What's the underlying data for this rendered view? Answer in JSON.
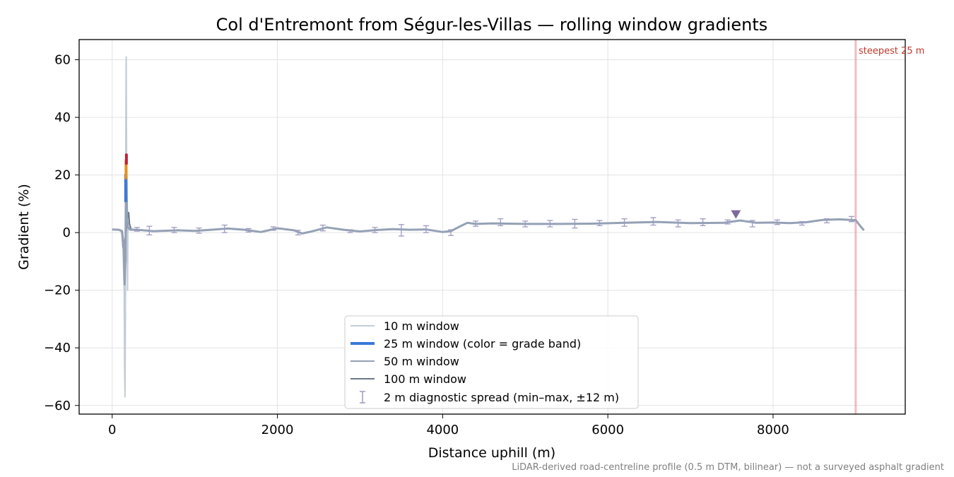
{
  "chart_data": {
    "type": "line",
    "title": "Col d'Entremont from Ségur-les-Villas — rolling window gradients",
    "xlabel": "Distance uphill (m)",
    "ylabel": "Gradient (%)",
    "xlim": [
      -400,
      9600
    ],
    "ylim": [
      -63,
      67
    ],
    "x_ticks": [
      0,
      2000,
      4000,
      6000,
      8000
    ],
    "x_tick_labels": [
      "0",
      "2000",
      "4000",
      "6000",
      "8000"
    ],
    "y_ticks": [
      -60,
      -40,
      -20,
      0,
      20,
      40,
      60
    ],
    "y_tick_labels": [
      "−60",
      "−40",
      "−20",
      "0",
      "20",
      "40",
      "60"
    ],
    "grid": true,
    "legend_position": "lower-center",
    "colors": {
      "w10": "#c3ccd8",
      "w25": "#3a78d8",
      "w50": "#94a1b6",
      "w100": "#6b7787",
      "spread": "#9e9ac0",
      "steepest": "#e8a0ac",
      "marker": "#7d6a9c",
      "band_orange": "#e8901c",
      "band_red": "#c0203a"
    },
    "series": [
      {
        "name": "10 m window",
        "key": "w10",
        "x": [
          0,
          40,
          80,
          110,
          130,
          145,
          150,
          155,
          160,
          163,
          166,
          170,
          174,
          178,
          182,
          186,
          190,
          200,
          250,
          300,
          500,
          800,
          1000,
          1200,
          1400,
          1600,
          1800,
          2000,
          2200,
          2300,
          2400,
          2600,
          2800,
          3000,
          3200,
          3400,
          3600,
          3800,
          4000,
          4100,
          4200,
          4300,
          4400,
          4600,
          5000,
          5400,
          5800,
          6200,
          6600,
          7000,
          7400,
          7600,
          7800,
          8000,
          8200,
          8400,
          8600,
          8800,
          9000,
          9050,
          9100
        ],
        "y": [
          1.2,
          1.0,
          1.0,
          0.8,
          -5,
          -20,
          -48,
          -57,
          -30,
          10,
          45,
          61,
          30,
          -10,
          5,
          -20,
          2,
          1,
          1.2,
          1,
          0.5,
          0.8,
          0.6,
          1.0,
          1.4,
          1.0,
          0.2,
          1.5,
          0.8,
          -0.3,
          0.3,
          1.8,
          1.0,
          0.4,
          0.9,
          1.2,
          1.0,
          1.1,
          0.2,
          0.5,
          2.0,
          3.4,
          3.0,
          3.2,
          3.0,
          3.0,
          3.1,
          3.4,
          3.7,
          3.3,
          3.4,
          4.2,
          3.4,
          3.5,
          3.3,
          3.6,
          4.4,
          4.6,
          4.3,
          2.5,
          0.8
        ]
      },
      {
        "name": "25 m window (color = grade band)",
        "key": "w25",
        "x": [
          0,
          80,
          120,
          140,
          150,
          160,
          165,
          170,
          175,
          180,
          190,
          220,
          300,
          500,
          800,
          1000,
          1200,
          1400,
          1600,
          1800,
          2000,
          2200,
          2300,
          2400,
          2600,
          2800,
          3000,
          3200,
          3400,
          3600,
          3800,
          4000,
          4100,
          4200,
          4300,
          4400,
          4600,
          5000,
          5400,
          5800,
          6200,
          6600,
          7000,
          7400,
          7600,
          7800,
          8000,
          8200,
          8400,
          8600,
          8800,
          9000,
          9050,
          9100
        ],
        "y": [
          1.1,
          1.0,
          0.5,
          -5,
          -18,
          -10,
          12,
          26,
          18,
          5,
          2,
          1,
          1,
          0.5,
          0.8,
          0.6,
          1.0,
          1.4,
          1.0,
          0.2,
          1.5,
          0.8,
          -0.3,
          0.3,
          1.8,
          1.0,
          0.4,
          0.9,
          1.2,
          1.0,
          1.1,
          0.2,
          0.5,
          2.0,
          3.4,
          3.0,
          3.2,
          3.0,
          3.0,
          3.1,
          3.4,
          3.7,
          3.3,
          3.4,
          4.2,
          3.4,
          3.5,
          3.3,
          3.6,
          4.4,
          4.6,
          4.3,
          2.5,
          0.8
        ]
      },
      {
        "name": "50 m window",
        "key": "w50",
        "x": [
          0,
          80,
          120,
          140,
          150,
          160,
          170,
          180,
          200,
          250,
          300,
          500,
          800,
          1000,
          1200,
          1400,
          1600,
          1800,
          2000,
          2200,
          2300,
          2400,
          2600,
          2800,
          3000,
          3200,
          3400,
          3600,
          3800,
          4000,
          4100,
          4200,
          4300,
          4400,
          4600,
          5000,
          5400,
          5800,
          6200,
          6600,
          7000,
          7400,
          7600,
          7800,
          8000,
          8200,
          8400,
          8600,
          8800,
          9000,
          9050,
          9100
        ],
        "y": [
          1.1,
          1.0,
          0.6,
          -3,
          -12,
          -8,
          10,
          4,
          1.5,
          1,
          1,
          0.5,
          0.8,
          0.6,
          1.0,
          1.4,
          1.0,
          0.2,
          1.5,
          0.8,
          -0.3,
          0.3,
          1.8,
          1.0,
          0.4,
          0.9,
          1.2,
          1.0,
          1.1,
          0.2,
          0.5,
          2.0,
          3.4,
          3.0,
          3.2,
          3.0,
          3.0,
          3.1,
          3.4,
          3.7,
          3.3,
          3.4,
          4.2,
          3.4,
          3.5,
          3.3,
          3.6,
          4.4,
          4.6,
          4.3,
          2.5,
          0.8
        ]
      },
      {
        "name": "100 m window",
        "key": "w100",
        "x": [
          0,
          60,
          100,
          120,
          130,
          140,
          150,
          170,
          190,
          200,
          210,
          230,
          260,
          300,
          500,
          800,
          1000,
          1200,
          1400,
          1600,
          1800,
          2000,
          2200,
          2300,
          2400,
          2600,
          2800,
          3000,
          3200,
          3400,
          3600,
          3800,
          4000,
          4100,
          4200,
          4300,
          4400,
          4600,
          5000,
          5400,
          5800,
          6200,
          6600,
          7000,
          7400,
          7600,
          7800,
          8000,
          8200,
          8400,
          8600,
          8800,
          9000,
          9050,
          9100
        ],
        "y": [
          1.1,
          1.0,
          0.8,
          0,
          -5,
          -5.5,
          -4,
          1,
          6,
          7,
          3,
          1.2,
          1.0,
          1,
          0.5,
          0.8,
          0.6,
          1.0,
          1.4,
          1.0,
          0.2,
          1.5,
          0.8,
          -0.3,
          0.3,
          1.8,
          1.0,
          0.4,
          0.9,
          1.2,
          1.0,
          1.1,
          0.2,
          0.5,
          2.0,
          3.4,
          3.0,
          3.2,
          3.0,
          3.0,
          3.1,
          3.4,
          3.7,
          3.3,
          3.4,
          4.2,
          3.4,
          3.5,
          3.3,
          3.6,
          4.4,
          4.6,
          4.3,
          2.5,
          0.8
        ]
      }
    ],
    "band_segments": [
      {
        "color_key": "w25",
        "x": 163,
        "y0": 11,
        "y1": 20
      },
      {
        "color_key": "band_orange",
        "x": 168,
        "y0": 19,
        "y1": 25
      },
      {
        "color_key": "band_red",
        "x": 172,
        "y0": 24,
        "y1": 27
      }
    ],
    "diagnostic_spread": {
      "name": "2 m diagnostic spread (min–max, ±12 m)",
      "points": [
        {
          "x": 300,
          "ymin": 0.5,
          "ymax": 1.8
        },
        {
          "x": 450,
          "ymin": -0.8,
          "ymax": 2.2
        },
        {
          "x": 750,
          "ymin": 0.0,
          "ymax": 1.8
        },
        {
          "x": 1050,
          "ymin": -0.2,
          "ymax": 1.6
        },
        {
          "x": 1360,
          "ymin": 0.0,
          "ymax": 2.6
        },
        {
          "x": 1650,
          "ymin": 0.2,
          "ymax": 1.4
        },
        {
          "x": 1950,
          "ymin": 0.8,
          "ymax": 2.0
        },
        {
          "x": 2250,
          "ymin": -0.8,
          "ymax": 0.8
        },
        {
          "x": 2550,
          "ymin": 0.6,
          "ymax": 2.6
        },
        {
          "x": 2880,
          "ymin": 0.0,
          "ymax": 1.0
        },
        {
          "x": 3180,
          "ymin": 0.0,
          "ymax": 1.8
        },
        {
          "x": 3500,
          "ymin": -1.2,
          "ymax": 2.8
        },
        {
          "x": 3800,
          "ymin": 0.0,
          "ymax": 2.4
        },
        {
          "x": 4100,
          "ymin": -1.0,
          "ymax": 1.0
        },
        {
          "x": 4400,
          "ymin": 2.2,
          "ymax": 4.0
        },
        {
          "x": 4700,
          "ymin": 2.4,
          "ymax": 4.8
        },
        {
          "x": 5000,
          "ymin": 2.0,
          "ymax": 4.0
        },
        {
          "x": 5300,
          "ymin": 2.0,
          "ymax": 4.2
        },
        {
          "x": 5600,
          "ymin": 1.6,
          "ymax": 4.6
        },
        {
          "x": 5900,
          "ymin": 2.4,
          "ymax": 4.2
        },
        {
          "x": 6200,
          "ymin": 2.2,
          "ymax": 4.8
        },
        {
          "x": 6550,
          "ymin": 2.6,
          "ymax": 5.2
        },
        {
          "x": 6850,
          "ymin": 2.0,
          "ymax": 4.4
        },
        {
          "x": 7150,
          "ymin": 2.4,
          "ymax": 4.8
        },
        {
          "x": 7450,
          "ymin": 3.0,
          "ymax": 4.4
        },
        {
          "x": 7750,
          "ymin": 2.0,
          "ymax": 4.2
        },
        {
          "x": 8050,
          "ymin": 2.8,
          "ymax": 4.4
        },
        {
          "x": 8350,
          "ymin": 2.6,
          "ymax": 3.8
        },
        {
          "x": 8650,
          "ymin": 3.4,
          "ymax": 4.8
        },
        {
          "x": 8950,
          "ymin": 3.8,
          "ymax": 5.6
        }
      ]
    },
    "steepest_line": {
      "x": 9000,
      "label": "steepest 25 m"
    },
    "summit_marker": {
      "x": 7550,
      "y": 6.3
    },
    "footnote": "LiDAR-derived road-centreline profile (0.5 m DTM, bilinear) — not a surveyed asphalt gradient"
  }
}
